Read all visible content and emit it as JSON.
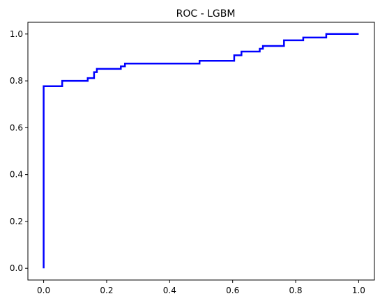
{
  "chart_data": {
    "type": "line",
    "title": "ROC - LGBM",
    "xlabel": "",
    "ylabel": "",
    "xlim": [
      -0.05,
      1.05
    ],
    "ylim": [
      -0.05,
      1.05
    ],
    "grid": false,
    "xticks": [
      "0.0",
      "0.2",
      "0.4",
      "0.6",
      "0.8",
      "1.0"
    ],
    "yticks": [
      "0.0",
      "0.2",
      "0.4",
      "0.6",
      "0.8",
      "1.0"
    ],
    "line_color": "#0000ff",
    "series": [
      {
        "x": [
          0.0,
          0.0,
          0.0,
          0.059,
          0.059,
          0.14,
          0.14,
          0.16,
          0.16,
          0.169,
          0.169,
          0.245,
          0.245,
          0.258,
          0.258,
          0.495,
          0.495,
          0.605,
          0.605,
          0.628,
          0.628,
          0.686,
          0.686,
          0.696,
          0.696,
          0.763,
          0.763,
          0.824,
          0.824,
          0.897,
          0.897,
          1.0
        ],
        "y": [
          0.0,
          0.0,
          0.777,
          0.777,
          0.8,
          0.8,
          0.812,
          0.812,
          0.837,
          0.837,
          0.851,
          0.851,
          0.862,
          0.862,
          0.874,
          0.874,
          0.886,
          0.886,
          0.909,
          0.909,
          0.925,
          0.925,
          0.937,
          0.937,
          0.949,
          0.949,
          0.973,
          0.973,
          0.985,
          0.985,
          1.0,
          1.0
        ]
      }
    ]
  }
}
